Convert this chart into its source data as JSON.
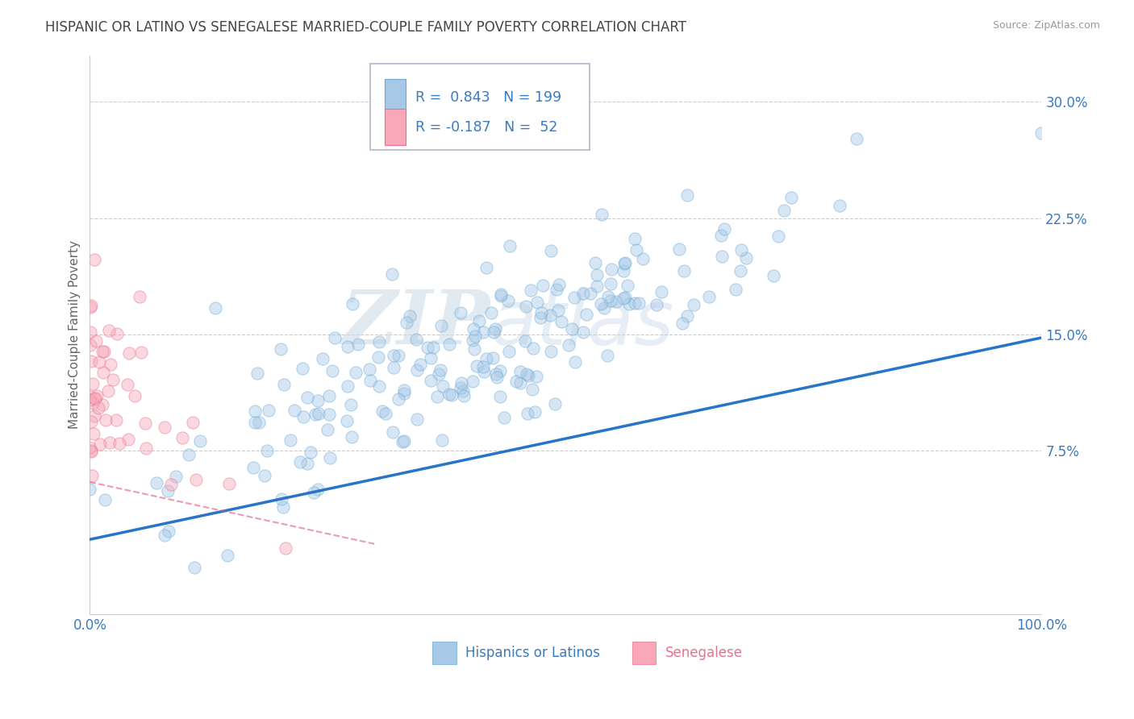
{
  "title": "HISPANIC OR LATINO VS SENEGALESE MARRIED-COUPLE FAMILY POVERTY CORRELATION CHART",
  "source": "Source: ZipAtlas.com",
  "ylabel": "Married-Couple Family Poverty",
  "xlim": [
    0.0,
    1.0
  ],
  "ylim": [
    -0.03,
    0.33
  ],
  "yticks": [
    0.075,
    0.15,
    0.225,
    0.3
  ],
  "ytick_labels": [
    "7.5%",
    "15.0%",
    "22.5%",
    "30.0%"
  ],
  "xticks": [
    0.0,
    0.25,
    0.5,
    0.75,
    1.0
  ],
  "xtick_labels": [
    "0.0%",
    "",
    "",
    "",
    "100.0%"
  ],
  "legend_labels": [
    "Hispanics or Latinos",
    "Senegalese"
  ],
  "blue_color": "#a8c8e8",
  "pink_color": "#f8a8b8",
  "blue_edge_color": "#6aaad4",
  "pink_edge_color": "#e87090",
  "blue_line_color": "#2874c8",
  "pink_line_color": "#e05878",
  "R_blue": 0.843,
  "N_blue": 199,
  "R_pink": -0.187,
  "N_pink": 52,
  "blue_trend_start_x": 0.0,
  "blue_trend_start_y": 0.018,
  "blue_trend_end_x": 1.0,
  "blue_trend_end_y": 0.148,
  "pink_trend_start_x": 0.0,
  "pink_trend_start_y": 0.055,
  "pink_trend_end_x": 0.3,
  "pink_trend_end_y": 0.015,
  "watermark_zip": "ZIP",
  "watermark_atlas": "atlas",
  "background_color": "#ffffff",
  "grid_color": "#cccccc",
  "title_fontsize": 12,
  "axis_label_fontsize": 11,
  "tick_fontsize": 12,
  "dot_size_blue": 120,
  "dot_size_pink": 120,
  "dot_alpha": 0.45
}
